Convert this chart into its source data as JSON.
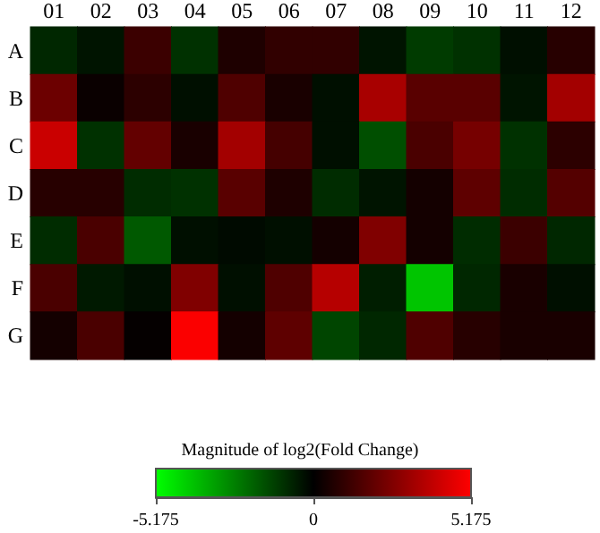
{
  "chart_data": {
    "type": "heatmap",
    "clabel": "Magnitude of log2(Fold Change)",
    "categories": [
      "01",
      "02",
      "03",
      "04",
      "05",
      "06",
      "07",
      "08",
      "09",
      "10",
      "11",
      "12"
    ],
    "y_categories": [
      "A",
      "B",
      "C",
      "D",
      "E",
      "F",
      "G"
    ],
    "cells": [
      [
        -0.8,
        -0.4,
        1.2,
        -1.0,
        0.6,
        1.0,
        1.0,
        -0.4,
        -1.2,
        -1.0,
        -0.3,
        0.8
      ],
      [
        2.2,
        0.2,
        0.9,
        -0.3,
        1.6,
        0.5,
        -0.3,
        3.4,
        1.8,
        1.8,
        -0.4,
        3.3
      ],
      [
        4.1,
        -1.0,
        2.0,
        0.5,
        3.3,
        1.4,
        -0.3,
        -1.6,
        1.5,
        2.4,
        -1.0,
        0.9
      ],
      [
        0.8,
        0.8,
        -0.9,
        -1.0,
        1.8,
        0.6,
        -0.9,
        -0.4,
        0.4,
        1.9,
        -0.9,
        1.7
      ],
      [
        -0.9,
        1.5,
        -1.8,
        -0.3,
        -0.2,
        -0.3,
        0.4,
        2.6,
        0.4,
        -0.9,
        1.2,
        -0.8
      ],
      [
        1.5,
        -0.5,
        -0.3,
        2.6,
        -0.3,
        1.6,
        3.7,
        -0.6,
        -4.0,
        -0.8,
        0.5,
        -0.3
      ],
      [
        0.4,
        1.5,
        0.1,
        5.1,
        0.4,
        1.9,
        -1.4,
        -0.8,
        1.6,
        0.8,
        0.5,
        0.5
      ]
    ],
    "clim": [
      -5.175,
      5.175
    ],
    "cticks": [
      -5.175,
      0,
      5.175
    ]
  }
}
